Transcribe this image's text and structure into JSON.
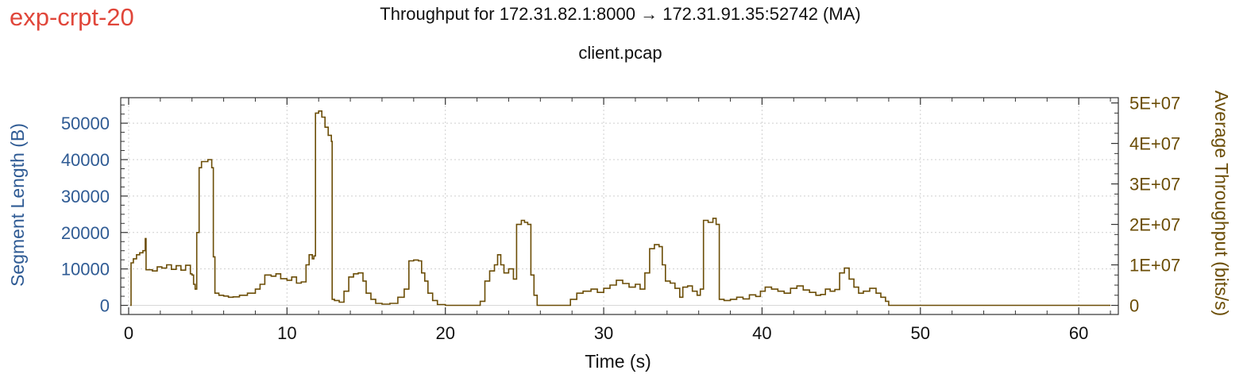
{
  "label": "exp-crpt-20",
  "colors": {
    "left_axis": "#2f5b94",
    "right_axis": "#6b4d06",
    "series": "#6b4d06",
    "tag": "#e0463a",
    "grid": "#cfcfcf"
  },
  "chart_data": {
    "type": "line",
    "title": "Throughput for 172.31.82.1:8000 → 172.31.91.35:52742 (MA)",
    "subtitle": "client.pcap",
    "xlabel": "Time (s)",
    "ylabel_left": "Segment Length (B)",
    "ylabel_right": "Average Throughput (bits/s)",
    "xlim": [
      -0.5,
      62.5
    ],
    "ylim_left": [
      -2500,
      57000
    ],
    "ylim_right": [
      -2250000,
      51300000
    ],
    "x_ticks": [
      0,
      10,
      20,
      30,
      40,
      50,
      60
    ],
    "x_tick_labels": [
      "0",
      "10",
      "20",
      "30",
      "40",
      "50",
      "60"
    ],
    "y_left_ticks": [
      0,
      10000,
      20000,
      30000,
      40000,
      50000
    ],
    "y_left_tick_labels": [
      "0",
      "10000",
      "20000",
      "30000",
      "40000",
      "50000"
    ],
    "y_right_ticks": [
      0,
      10000000,
      20000000,
      30000000,
      40000000,
      50000000
    ],
    "y_right_tick_labels": [
      "0",
      "1E+07",
      "2E+07",
      "3E+07",
      "4E+07",
      "5E+07"
    ],
    "grid": true,
    "series": [
      {
        "axis": "right",
        "step": true,
        "points": [
          [
            0.1,
            0
          ],
          [
            0.15,
            10500000
          ],
          [
            0.3,
            11500000
          ],
          [
            0.5,
            12500000
          ],
          [
            0.7,
            13000000
          ],
          [
            0.9,
            13500000
          ],
          [
            1.05,
            16500000
          ],
          [
            1.1,
            8800000
          ],
          [
            1.5,
            8500000
          ],
          [
            1.8,
            9500000
          ],
          [
            2.1,
            9200000
          ],
          [
            2.4,
            10000000
          ],
          [
            2.7,
            8900000
          ],
          [
            3.0,
            9800000
          ],
          [
            3.3,
            8700000
          ],
          [
            3.6,
            9900000
          ],
          [
            3.9,
            7800000
          ],
          [
            4.0,
            7500000
          ],
          [
            4.1,
            5200000
          ],
          [
            4.2,
            4000000
          ],
          [
            4.3,
            18000000
          ],
          [
            4.45,
            34000000
          ],
          [
            4.6,
            35500000
          ],
          [
            5.0,
            36000000
          ],
          [
            5.25,
            34000000
          ],
          [
            5.35,
            12000000
          ],
          [
            5.45,
            3000000
          ],
          [
            5.7,
            2500000
          ],
          [
            6.0,
            2300000
          ],
          [
            6.3,
            2000000
          ],
          [
            6.6,
            2100000
          ],
          [
            7.0,
            2500000
          ],
          [
            7.5,
            3000000
          ],
          [
            8.0,
            4000000
          ],
          [
            8.3,
            5200000
          ],
          [
            8.6,
            7500000
          ],
          [
            9.0,
            7200000
          ],
          [
            9.3,
            7800000
          ],
          [
            9.6,
            6600000
          ],
          [
            10.0,
            6200000
          ],
          [
            10.3,
            7000000
          ],
          [
            10.6,
            5500000
          ],
          [
            10.9,
            5800000
          ],
          [
            11.2,
            10000000
          ],
          [
            11.4,
            12500000
          ],
          [
            11.6,
            11500000
          ],
          [
            11.7,
            12200000
          ],
          [
            11.8,
            47500000
          ],
          [
            12.0,
            48000000
          ],
          [
            12.2,
            46500000
          ],
          [
            12.4,
            44000000
          ],
          [
            12.6,
            42000000
          ],
          [
            12.8,
            40500000
          ],
          [
            12.85,
            1500000
          ],
          [
            13.0,
            1200000
          ],
          [
            13.3,
            800000
          ],
          [
            13.6,
            3500000
          ],
          [
            13.9,
            7000000
          ],
          [
            14.2,
            7800000
          ],
          [
            14.5,
            8000000
          ],
          [
            14.8,
            6000000
          ],
          [
            15.0,
            3000000
          ],
          [
            15.3,
            1500000
          ],
          [
            15.6,
            500000
          ],
          [
            16.0,
            300000
          ],
          [
            16.5,
            500000
          ],
          [
            17.0,
            2000000
          ],
          [
            17.4,
            4000000
          ],
          [
            17.7,
            11000000
          ],
          [
            18.0,
            11200000
          ],
          [
            18.3,
            11000000
          ],
          [
            18.5,
            8000000
          ],
          [
            18.7,
            6000000
          ],
          [
            18.9,
            3000000
          ],
          [
            19.2,
            1200000
          ],
          [
            19.5,
            200000
          ],
          [
            20.0,
            0
          ],
          [
            22.0,
            0
          ],
          [
            22.2,
            1000000
          ],
          [
            22.5,
            6000000
          ],
          [
            22.8,
            8500000
          ],
          [
            23.1,
            10000000
          ],
          [
            23.3,
            12500000
          ],
          [
            23.5,
            10000000
          ],
          [
            23.7,
            8000000
          ],
          [
            24.0,
            9000000
          ],
          [
            24.3,
            6500000
          ],
          [
            24.5,
            20000000
          ],
          [
            24.8,
            21000000
          ],
          [
            25.0,
            20500000
          ],
          [
            25.2,
            20000000
          ],
          [
            25.4,
            7500000
          ],
          [
            25.6,
            2500000
          ],
          [
            25.8,
            0
          ],
          [
            26.5,
            0
          ],
          [
            27.5,
            0
          ],
          [
            27.9,
            1500000
          ],
          [
            28.3,
            3000000
          ],
          [
            28.7,
            3500000
          ],
          [
            29.2,
            4000000
          ],
          [
            29.6,
            3200000
          ],
          [
            30.0,
            4200000
          ],
          [
            30.4,
            5000000
          ],
          [
            30.8,
            6200000
          ],
          [
            31.2,
            5400000
          ],
          [
            31.6,
            4500000
          ],
          [
            32.0,
            5200000
          ],
          [
            32.3,
            4000000
          ],
          [
            32.6,
            8000000
          ],
          [
            32.9,
            14000000
          ],
          [
            33.2,
            15000000
          ],
          [
            33.5,
            14500000
          ],
          [
            33.7,
            10000000
          ],
          [
            33.9,
            6000000
          ],
          [
            34.2,
            5500000
          ],
          [
            34.5,
            4200000
          ],
          [
            34.8,
            2000000
          ],
          [
            35.0,
            4500000
          ],
          [
            35.3,
            4800000
          ],
          [
            35.6,
            3500000
          ],
          [
            35.9,
            2500000
          ],
          [
            36.1,
            4000000
          ],
          [
            36.3,
            21000000
          ],
          [
            36.6,
            20500000
          ],
          [
            36.9,
            21500000
          ],
          [
            37.1,
            20000000
          ],
          [
            37.3,
            1500000
          ],
          [
            37.6,
            1200000
          ],
          [
            38.0,
            1500000
          ],
          [
            38.4,
            2000000
          ],
          [
            38.8,
            1600000
          ],
          [
            39.2,
            2600000
          ],
          [
            39.6,
            2200000
          ],
          [
            39.9,
            3500000
          ],
          [
            40.2,
            4500000
          ],
          [
            40.6,
            4000000
          ],
          [
            41.0,
            3500000
          ],
          [
            41.4,
            3000000
          ],
          [
            41.8,
            4200000
          ],
          [
            42.2,
            4800000
          ],
          [
            42.6,
            3800000
          ],
          [
            43.0,
            3200000
          ],
          [
            43.4,
            2500000
          ],
          [
            43.7,
            2700000
          ],
          [
            44.0,
            4000000
          ],
          [
            44.3,
            3500000
          ],
          [
            44.6,
            3900000
          ],
          [
            44.9,
            8000000
          ],
          [
            45.2,
            9200000
          ],
          [
            45.5,
            6500000
          ],
          [
            45.8,
            4500000
          ],
          [
            46.1,
            3000000
          ],
          [
            46.4,
            3500000
          ],
          [
            46.8,
            4200000
          ],
          [
            47.2,
            3000000
          ],
          [
            47.5,
            2000000
          ],
          [
            47.8,
            1000000
          ],
          [
            48.0,
            0
          ],
          [
            50.0,
            0
          ],
          [
            55.0,
            0
          ],
          [
            62.0,
            0
          ]
        ]
      }
    ]
  }
}
